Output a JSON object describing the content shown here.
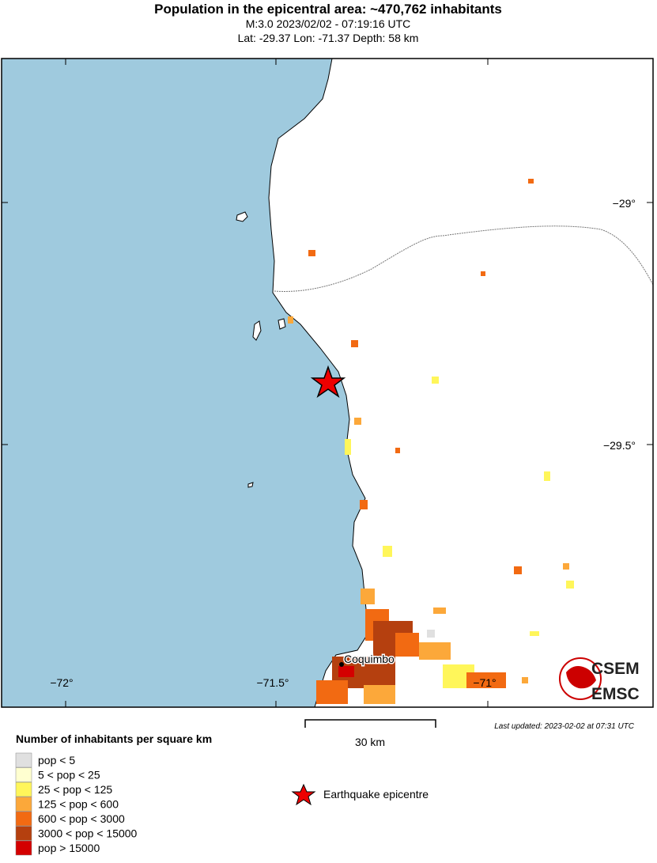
{
  "header": {
    "title": "Population in the epicentral area: ~470,762 inhabitants",
    "line1": "M:3.0 2023/02/02 - 07:19:16 UTC",
    "line2": "Lat: -29.37 Lon: -71.37 Depth: 58 km"
  },
  "map": {
    "lat_labels": [
      "−29°",
      "−29.5°"
    ],
    "lon_labels": [
      "−72°",
      "−71.5°",
      "−71°"
    ],
    "place": "Coquimbo",
    "logo": [
      "CSEM",
      "EMSC"
    ]
  },
  "scale": {
    "label": "30 km"
  },
  "updated": "Last updated: 2023-02-02 at 07:31 UTC",
  "legend": {
    "title": "Number of inhabitants per square km",
    "items": [
      "pop < 5",
      "5 < pop < 25",
      "25 < pop < 125",
      "125 < pop < 600",
      "600 < pop < 3000",
      "3000 < pop < 15000",
      "pop > 15000"
    ],
    "epicentre": "Earthquake epicentre"
  }
}
